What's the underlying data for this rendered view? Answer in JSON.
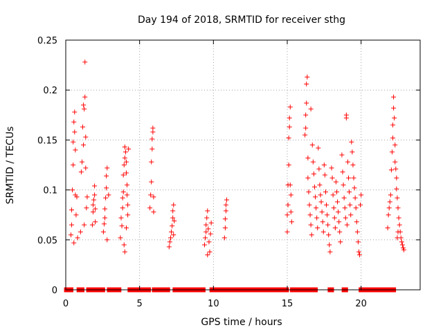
{
  "chart_data": {
    "type": "scatter",
    "title": "Day 194 of 2018, SRMTID for receiver sthg",
    "xlabel": "GPS time / hours",
    "ylabel": "SRMTID / TECUs",
    "xlim": [
      0,
      24
    ],
    "ylim": [
      0,
      0.25
    ],
    "xticks": [
      0,
      5,
      10,
      15,
      20
    ],
    "yticks": [
      0,
      0.05,
      0.1,
      0.15,
      0.2,
      0.25
    ],
    "xtick_labels": [
      "0",
      "5",
      "10",
      "15",
      "20"
    ],
    "ytick_labels": [
      "0",
      "0.05",
      "0.1",
      "0.15",
      "0.2",
      "0.25"
    ],
    "grid": true,
    "marker": "+",
    "series": [
      {
        "name": "SRMTID",
        "color": "#ff0000",
        "points": [
          [
            0.35,
            0.055
          ],
          [
            0.4,
            0.065
          ],
          [
            0.4,
            0.08
          ],
          [
            0.45,
            0.1
          ],
          [
            0.5,
            0.125
          ],
          [
            0.5,
            0.148
          ],
          [
            0.55,
            0.168
          ],
          [
            0.6,
            0.178
          ],
          [
            0.6,
            0.158
          ],
          [
            0.65,
            0.14
          ],
          [
            0.65,
            0.095
          ],
          [
            0.7,
            0.075
          ],
          [
            0.55,
            0.047
          ],
          [
            0.75,
            0.093
          ],
          [
            0.8,
            0.052
          ],
          [
            1.0,
            0.058
          ],
          [
            1.05,
            0.118
          ],
          [
            1.1,
            0.128
          ],
          [
            1.15,
            0.163
          ],
          [
            1.2,
            0.185
          ],
          [
            1.25,
            0.181
          ],
          [
            1.3,
            0.228
          ],
          [
            1.3,
            0.193
          ],
          [
            1.35,
            0.153
          ],
          [
            1.35,
            0.122
          ],
          [
            1.2,
            0.145
          ],
          [
            1.25,
            0.065
          ],
          [
            1.4,
            0.082
          ],
          [
            1.45,
            0.093
          ],
          [
            1.8,
            0.065
          ],
          [
            1.85,
            0.078
          ],
          [
            1.85,
            0.085
          ],
          [
            1.9,
            0.09
          ],
          [
            1.95,
            0.095
          ],
          [
            1.95,
            0.104
          ],
          [
            2.0,
            0.081
          ],
          [
            2.0,
            0.068
          ],
          [
            2.55,
            0.058
          ],
          [
            2.6,
            0.066
          ],
          [
            2.65,
            0.072
          ],
          [
            2.65,
            0.081
          ],
          [
            2.7,
            0.092
          ],
          [
            2.75,
            0.102
          ],
          [
            2.75,
            0.114
          ],
          [
            2.8,
            0.122
          ],
          [
            2.8,
            0.05
          ],
          [
            2.9,
            0.095
          ],
          [
            3.7,
            0.052
          ],
          [
            3.75,
            0.072
          ],
          [
            3.8,
            0.064
          ],
          [
            3.85,
            0.082
          ],
          [
            3.85,
            0.092
          ],
          [
            3.9,
            0.098
          ],
          [
            3.9,
            0.115
          ],
          [
            3.95,
            0.125
          ],
          [
            4.0,
            0.132
          ],
          [
            4.0,
            0.143
          ],
          [
            4.05,
            0.138
          ],
          [
            4.1,
            0.128
          ],
          [
            4.1,
            0.117
          ],
          [
            4.15,
            0.105
          ],
          [
            4.15,
            0.095
          ],
          [
            4.2,
            0.085
          ],
          [
            4.2,
            0.075
          ],
          [
            3.95,
            0.045
          ],
          [
            4.0,
            0.038
          ],
          [
            4.1,
            0.062
          ],
          [
            4.25,
            0.141
          ],
          [
            5.7,
            0.082
          ],
          [
            5.75,
            0.095
          ],
          [
            5.8,
            0.108
          ],
          [
            5.8,
            0.128
          ],
          [
            5.85,
            0.141
          ],
          [
            5.85,
            0.151
          ],
          [
            5.9,
            0.158
          ],
          [
            5.9,
            0.162
          ],
          [
            5.95,
            0.093
          ],
          [
            5.95,
            0.078
          ],
          [
            7.0,
            0.043
          ],
          [
            7.05,
            0.048
          ],
          [
            7.1,
            0.052
          ],
          [
            7.15,
            0.058
          ],
          [
            7.2,
            0.064
          ],
          [
            7.25,
            0.072
          ],
          [
            7.25,
            0.079
          ],
          [
            7.3,
            0.085
          ],
          [
            7.35,
            0.069
          ],
          [
            7.3,
            0.055
          ],
          [
            9.4,
            0.045
          ],
          [
            9.45,
            0.052
          ],
          [
            9.5,
            0.058
          ],
          [
            9.5,
            0.065
          ],
          [
            9.55,
            0.072
          ],
          [
            9.6,
            0.079
          ],
          [
            9.65,
            0.061
          ],
          [
            9.7,
            0.048
          ],
          [
            9.75,
            0.038
          ],
          [
            9.6,
            0.035
          ],
          [
            9.8,
            0.056
          ],
          [
            9.85,
            0.067
          ],
          [
            10.75,
            0.052
          ],
          [
            10.8,
            0.062
          ],
          [
            10.8,
            0.071
          ],
          [
            10.85,
            0.079
          ],
          [
            10.85,
            0.085
          ],
          [
            10.9,
            0.09
          ],
          [
            15.0,
            0.058
          ],
          [
            15.0,
            0.075
          ],
          [
            15.05,
            0.085
          ],
          [
            15.05,
            0.105
          ],
          [
            15.1,
            0.125
          ],
          [
            15.1,
            0.152
          ],
          [
            15.15,
            0.163
          ],
          [
            15.15,
            0.172
          ],
          [
            15.2,
            0.183
          ],
          [
            15.2,
            0.105
          ],
          [
            15.25,
            0.095
          ],
          [
            15.25,
            0.078
          ],
          [
            15.3,
            0.068
          ],
          [
            16.2,
            0.155
          ],
          [
            16.25,
            0.162
          ],
          [
            16.25,
            0.175
          ],
          [
            16.3,
            0.187
          ],
          [
            16.3,
            0.206
          ],
          [
            16.35,
            0.213
          ],
          [
            16.4,
            0.132
          ],
          [
            16.4,
            0.112
          ],
          [
            16.45,
            0.098
          ],
          [
            16.5,
            0.085
          ],
          [
            16.55,
            0.075
          ],
          [
            16.6,
            0.181
          ],
          [
            16.6,
            0.065
          ],
          [
            16.65,
            0.055
          ],
          [
            16.7,
            0.145
          ],
          [
            16.75,
            0.128
          ],
          [
            16.8,
            0.116
          ],
          [
            16.85,
            0.103
          ],
          [
            16.9,
            0.093
          ],
          [
            16.95,
            0.082
          ],
          [
            17.0,
            0.072
          ],
          [
            17.05,
            0.062
          ],
          [
            17.1,
            0.142
          ],
          [
            17.15,
            0.121
          ],
          [
            17.2,
            0.105
          ],
          [
            17.25,
            0.095
          ],
          [
            17.3,
            0.088
          ],
          [
            17.35,
            0.078
          ],
          [
            17.4,
            0.068
          ],
          [
            17.45,
            0.058
          ],
          [
            17.5,
            0.125
          ],
          [
            17.55,
            0.115
          ],
          [
            17.6,
            0.098
          ],
          [
            17.65,
            0.085
          ],
          [
            17.7,
            0.075
          ],
          [
            17.75,
            0.065
          ],
          [
            17.8,
            0.055
          ],
          [
            17.85,
            0.045
          ],
          [
            17.9,
            0.038
          ],
          [
            18.0,
            0.122
          ],
          [
            18.05,
            0.112
          ],
          [
            18.1,
            0.095
          ],
          [
            18.15,
            0.082
          ],
          [
            18.2,
            0.072
          ],
          [
            18.25,
            0.062
          ],
          [
            18.3,
            0.108
          ],
          [
            18.35,
            0.098
          ],
          [
            18.4,
            0.088
          ],
          [
            18.45,
            0.078
          ],
          [
            18.5,
            0.068
          ],
          [
            18.55,
            0.058
          ],
          [
            18.6,
            0.048
          ],
          [
            18.7,
            0.135
          ],
          [
            18.75,
            0.118
          ],
          [
            18.8,
            0.105
          ],
          [
            18.85,
            0.092
          ],
          [
            18.9,
            0.082
          ],
          [
            18.95,
            0.072
          ],
          [
            19.0,
            0.175
          ],
          [
            19.0,
            0.172
          ],
          [
            19.05,
            0.065
          ],
          [
            19.1,
            0.128
          ],
          [
            19.15,
            0.112
          ],
          [
            19.2,
            0.098
          ],
          [
            19.25,
            0.085
          ],
          [
            19.3,
            0.075
          ],
          [
            19.35,
            0.148
          ],
          [
            19.4,
            0.138
          ],
          [
            19.45,
            0.125
          ],
          [
            19.5,
            0.112
          ],
          [
            19.55,
            0.102
          ],
          [
            19.6,
            0.092
          ],
          [
            19.65,
            0.082
          ],
          [
            19.7,
            0.068
          ],
          [
            19.75,
            0.058
          ],
          [
            19.8,
            0.048
          ],
          [
            19.85,
            0.038
          ],
          [
            19.9,
            0.035
          ],
          [
            19.95,
            0.085
          ],
          [
            20.0,
            0.095
          ],
          [
            21.8,
            0.062
          ],
          [
            21.85,
            0.075
          ],
          [
            21.9,
            0.082
          ],
          [
            21.95,
            0.088
          ],
          [
            22.0,
            0.095
          ],
          [
            22.05,
            0.12
          ],
          [
            22.1,
            0.138
          ],
          [
            22.15,
            0.152
          ],
          [
            22.15,
            0.165
          ],
          [
            22.2,
            0.182
          ],
          [
            22.2,
            0.193
          ],
          [
            22.25,
            0.172
          ],
          [
            22.3,
            0.145
          ],
          [
            22.3,
            0.128
          ],
          [
            22.35,
            0.121
          ],
          [
            22.4,
            0.112
          ],
          [
            22.4,
            0.101
          ],
          [
            22.45,
            0.092
          ],
          [
            22.5,
            0.082
          ],
          [
            22.55,
            0.072
          ],
          [
            22.6,
            0.065
          ],
          [
            22.65,
            0.058
          ],
          [
            22.7,
            0.052
          ],
          [
            22.75,
            0.048
          ],
          [
            22.8,
            0.045
          ],
          [
            22.85,
            0.042
          ],
          [
            22.9,
            0.04
          ],
          [
            22.5,
            0.058
          ],
          [
            22.45,
            0.052
          ]
        ],
        "zero_intervals": [
          [
            0.05,
            0.35
          ],
          [
            0.9,
            1.1
          ],
          [
            1.55,
            1.75
          ],
          [
            2.05,
            2.5
          ],
          [
            2.95,
            3.6
          ],
          [
            4.35,
            5.6
          ],
          [
            6.0,
            6.9
          ],
          [
            7.4,
            9.3
          ],
          [
            9.9,
            10.65
          ],
          [
            10.95,
            14.95
          ],
          [
            15.35,
            16.1
          ],
          [
            16.3,
            16.9
          ],
          [
            17.9,
            18.0
          ],
          [
            18.85,
            18.95
          ],
          [
            20.0,
            21.65
          ],
          [
            21.9,
            22.2
          ]
        ]
      }
    ]
  }
}
